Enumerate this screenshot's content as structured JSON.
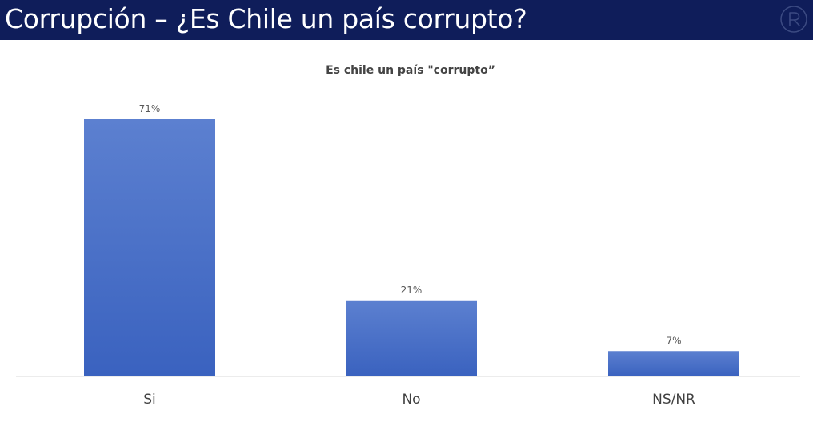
{
  "header": {
    "title": "Corrupción – ¿Es Chile un país corrupto?",
    "background_color": "#0f1d5a",
    "logo_icon": "r-logo-icon"
  },
  "chart_data": {
    "type": "bar",
    "title": "Es chile un país \"corrupto”",
    "categories": [
      "Si",
      "No",
      "NS/NR"
    ],
    "values": [
      71,
      21,
      7
    ],
    "data_labels": [
      "71%",
      "21%",
      "7%"
    ],
    "ylim": [
      0,
      71
    ],
    "grid": false,
    "legend": "none",
    "bar_color_top": "#5c80d0",
    "bar_color_bottom": "#3a62bf"
  }
}
